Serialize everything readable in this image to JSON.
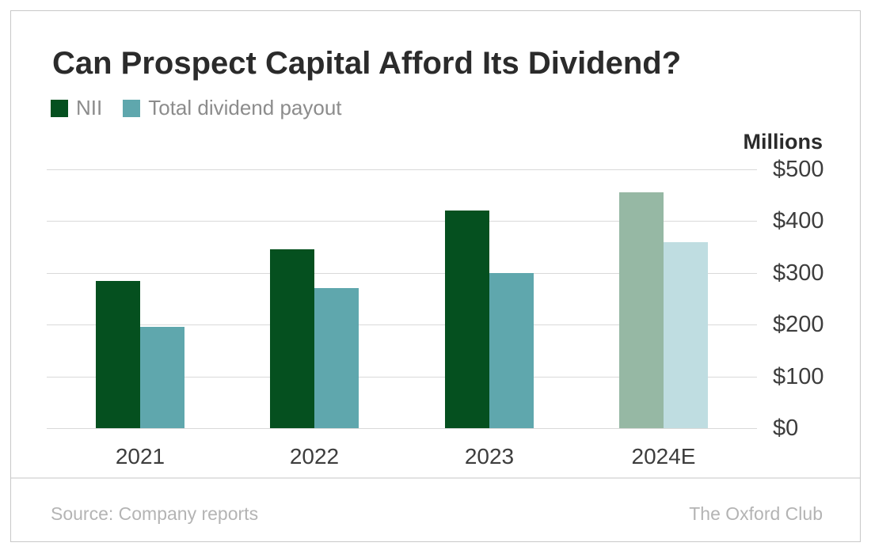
{
  "footer": {
    "source": "Source: Company reports",
    "brand": "The Oxford Club"
  },
  "legend": [
    {
      "key": "nii",
      "label": "NII",
      "color": "#05501f"
    },
    {
      "key": "payout",
      "label": "Total dividend payout",
      "color": "#5fa7ad"
    }
  ],
  "colors": {
    "nii": "#05501f",
    "payout": "#5fa7ad",
    "nii_estimate": "#96b8a4",
    "payout_estimate": "#bfdde1",
    "gridline": "#d9d9d9",
    "title_text": "#2b2b2b",
    "axis_text": "#3d3d3d",
    "legend_text": "#8c8c8c",
    "footer_text": "#b4b4b4"
  },
  "chart_data": {
    "type": "bar",
    "title": "Can Prospect Capital Afford Its Dividend?",
    "unit_label": "Millions",
    "xlabel": "",
    "ylabel": "Millions",
    "ylim": [
      0,
      500
    ],
    "grid": "horizontal",
    "legend_position": "top-left",
    "yticks": [
      {
        "value": 0,
        "label": "$0"
      },
      {
        "value": 100,
        "label": "$100"
      },
      {
        "value": 200,
        "label": "$200"
      },
      {
        "value": 300,
        "label": "$300"
      },
      {
        "value": 400,
        "label": "$400"
      },
      {
        "value": 500,
        "label": "$500"
      }
    ],
    "categories": [
      "2021",
      "2022",
      "2023",
      "2024E"
    ],
    "series": [
      {
        "key": "nii",
        "name": "NII",
        "values": [
          285,
          345,
          420,
          455
        ],
        "colors": [
          "#05501f",
          "#05501f",
          "#05501f",
          "#96b8a4"
        ],
        "note": "2024E shown in lighter estimate shade"
      },
      {
        "key": "payout",
        "name": "Total dividend payout",
        "values": [
          195,
          270,
          300,
          360
        ],
        "colors": [
          "#5fa7ad",
          "#5fa7ad",
          "#5fa7ad",
          "#bfdde1"
        ],
        "note": "2024E shown in lighter estimate shade"
      }
    ]
  }
}
